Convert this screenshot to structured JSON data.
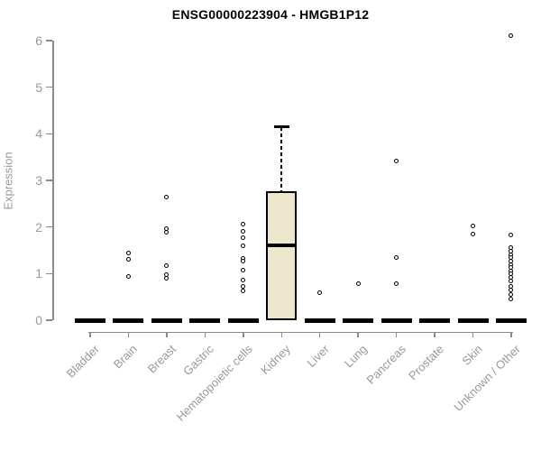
{
  "chart": {
    "title": "ENSG00000223904 - HMGB1P12",
    "ylabel": "Expression"
  },
  "chart_data": {
    "type": "boxplot",
    "title": "ENSG00000223904 - HMGB1P12",
    "xlabel": "",
    "ylabel": "Expression",
    "ylim": [
      0,
      6
    ],
    "yticks": [
      0,
      1,
      2,
      3,
      4,
      5,
      6
    ],
    "grid": false,
    "legend": false,
    "categories": [
      "Bladder",
      "Brain",
      "Breast",
      "Gastric",
      "Hematopoietic cells",
      "Kidney",
      "Liver",
      "Lung",
      "Pancreas",
      "Prostate",
      "Skin",
      "Unknown / Other"
    ],
    "boxes": [
      {
        "category": "Bladder",
        "q1": 0,
        "median": 0,
        "q3": 0,
        "whisker_low": 0,
        "whisker_high": 0,
        "points": []
      },
      {
        "category": "Brain",
        "q1": 0,
        "median": 0,
        "q3": 0,
        "whisker_low": 0,
        "whisker_high": 0,
        "points": [
          1.45,
          1.31,
          0.93
        ]
      },
      {
        "category": "Breast",
        "q1": 0,
        "median": 0,
        "q3": 0,
        "whisker_low": 0,
        "whisker_high": 0,
        "points": [
          2.65,
          1.97,
          1.88,
          1.18,
          0.97,
          0.9
        ]
      },
      {
        "category": "Gastric",
        "q1": 0,
        "median": 0,
        "q3": 0,
        "whisker_low": 0,
        "whisker_high": 0,
        "points": []
      },
      {
        "category": "Hematopoietic cells",
        "q1": 0,
        "median": 0,
        "q3": 0,
        "whisker_low": 0,
        "whisker_high": 0,
        "points": [
          2.07,
          1.9,
          1.78,
          1.59,
          1.32,
          1.26,
          1.08,
          0.87,
          0.72,
          0.62
        ]
      },
      {
        "category": "Kidney",
        "q1": 0,
        "median": 1.6,
        "q3": 2.77,
        "whisker_low": 0,
        "whisker_high": 4.15,
        "points": []
      },
      {
        "category": "Liver",
        "q1": 0,
        "median": 0,
        "q3": 0,
        "whisker_low": 0,
        "whisker_high": 0,
        "points": [
          0.6
        ]
      },
      {
        "category": "Lung",
        "q1": 0,
        "median": 0,
        "q3": 0,
        "whisker_low": 0,
        "whisker_high": 0,
        "points": [
          0.78
        ]
      },
      {
        "category": "Pancreas",
        "q1": 0,
        "median": 0,
        "q3": 0,
        "whisker_low": 0,
        "whisker_high": 0,
        "points": [
          3.42,
          1.35,
          0.78
        ]
      },
      {
        "category": "Prostate",
        "q1": 0,
        "median": 0,
        "q3": 0,
        "whisker_low": 0,
        "whisker_high": 0,
        "points": []
      },
      {
        "category": "Skin",
        "q1": 0,
        "median": 0,
        "q3": 0,
        "whisker_low": 0,
        "whisker_high": 0,
        "points": [
          2.03,
          1.85
        ]
      },
      {
        "category": "Unknown / Other",
        "q1": 0,
        "median": 0,
        "q3": 0,
        "whisker_low": 0,
        "whisker_high": 0,
        "points": [
          6.1,
          1.82,
          1.55,
          1.48,
          1.41,
          1.34,
          1.27,
          1.2,
          1.13,
          1.06,
          0.99,
          0.92,
          0.85,
          0.73,
          0.64,
          0.55,
          0.46
        ]
      }
    ],
    "colors": {
      "box_fill": "#ece7cd",
      "box_border": "#000000",
      "median": "#000000",
      "point": "#000000",
      "axis_line": "#8a8a8a",
      "axis_text": "#999999",
      "title_text": "#000000",
      "background": "#ffffff"
    }
  }
}
